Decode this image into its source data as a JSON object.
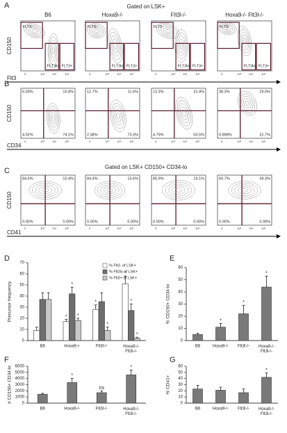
{
  "panels": [
    {
      "label": "A",
      "title": "Gated on LSK+",
      "columns": [
        "B6",
        "Hoxa9-/-",
        "Flt3l-/-",
        "Hoxa9-/-  Flt3l-/-"
      ],
      "y_label": "CD150",
      "x_label": "Flt3",
      "gates": [
        "FLT3-",
        "FLT3lo",
        "FLT3+"
      ]
    },
    {
      "label": "B",
      "y_label": "CD150",
      "x_label": "CD34",
      "quadrants": [
        [
          "6.03%",
          "15.8%",
          "4.02%",
          "74.1%"
        ],
        [
          "12.7%",
          "11.6%",
          "2.38%",
          "73.3%"
        ],
        [
          "13.3%",
          "31.4%",
          "4.79%",
          "50.5%"
        ],
        [
          "38.3%",
          "29.0%",
          "0.898%",
          "31.7%"
        ]
      ]
    },
    {
      "label": "C",
      "title": "Gated on LSK+ CD150+ CD34-lo",
      "y_label": "CD150",
      "x_label": "CD41",
      "quadrants": [
        [
          "84.6%",
          "15.4%",
          "0.00%",
          "0.00%"
        ],
        [
          "84.4%",
          "15.6%",
          "0.00%",
          "0.00%"
        ],
        [
          "85.9%",
          "14.1%",
          "0.00%",
          "0.00%"
        ],
        [
          "60.7%",
          "39.3%",
          "0.00%",
          "0.00%"
        ]
      ]
    }
  ],
  "axis_ticks": [
    "0",
    "10³",
    "10⁴",
    "10⁵"
  ],
  "chart_data": [
    {
      "type": "bar",
      "label": "D",
      "y_label": "Precursor frequency",
      "categories": [
        "B6",
        "Hoxa9-/-",
        "Flt3l-/-",
        "Hoxa9-/- Flt3l-/-"
      ],
      "ylim": [
        0,
        70
      ],
      "yticks": [
        0,
        10,
        20,
        30,
        40,
        50,
        60,
        70
      ],
      "series": [
        {
          "name": "% Flt3- of LSK+",
          "color": "#ffffff",
          "values": [
            9,
            17,
            28,
            51
          ],
          "errors": [
            3,
            2,
            4,
            7
          ],
          "significance": [
            null,
            "*",
            "*",
            "*"
          ]
        },
        {
          "name": "% Flt3lo of LSK+",
          "color": "#6e6e6e",
          "values": [
            37,
            42,
            35,
            27
          ],
          "errors": [
            6,
            6,
            8,
            6
          ],
          "significance": [
            null,
            "*",
            null,
            "*"
          ]
        },
        {
          "name": "% Flt3+ of LSK+",
          "color": "#c8c8c8",
          "values": [
            37,
            18,
            9,
            2
          ],
          "errors": [
            6,
            2,
            3,
            1
          ],
          "significance": [
            null,
            "*",
            "*",
            "*"
          ]
        }
      ]
    },
    {
      "type": "bar",
      "label": "E",
      "y_label": "% CD150+ CD34-lo",
      "categories": [
        "B6",
        "Hoxa9-/-",
        "Flt3l-/-",
        "Hoxa9-/- Flt3l-/-"
      ],
      "ylim": [
        0,
        60
      ],
      "yticks": [
        0,
        10,
        20,
        30,
        40,
        50,
        60
      ],
      "series": [
        {
          "name": null,
          "color": "#7a7a7a",
          "values": [
            5,
            11,
            22,
            44
          ],
          "errors": [
            1,
            3,
            7,
            9
          ],
          "significance": [
            null,
            "*",
            "*",
            "*"
          ]
        }
      ]
    },
    {
      "type": "bar",
      "label": "F",
      "y_label": "# CD150+ CD34-lo",
      "categories": [
        "B6",
        "Hoxa9-/-",
        "Flt3l-/-",
        "Hoxa9-/- Flt3l-/-"
      ],
      "ylim": [
        0,
        6000
      ],
      "yticks": [
        0,
        1000,
        2000,
        3000,
        4000,
        5000,
        6000
      ],
      "series": [
        {
          "name": null,
          "color": "#7a7a7a",
          "values": [
            1450,
            3350,
            1700,
            4600
          ],
          "errors": [
            150,
            700,
            300,
            800
          ],
          "significance": [
            null,
            "*",
            "ns",
            "*"
          ]
        }
      ]
    },
    {
      "type": "bar",
      "label": "G",
      "y_label": "% CD41+",
      "categories": [
        "B6",
        "Hoxa9-/-",
        "Flt3l-/-",
        "Hoxa9-/- Flt3l-/-"
      ],
      "ylim": [
        0,
        60
      ],
      "yticks": [
        0,
        10,
        20,
        30,
        40,
        50,
        60
      ],
      "series": [
        {
          "name": null,
          "color": "#7a7a7a",
          "values": [
            23,
            21,
            17,
            42
          ],
          "errors": [
            6,
            5,
            6,
            7
          ],
          "significance": [
            null,
            null,
            null,
            "*"
          ]
        }
      ]
    }
  ]
}
